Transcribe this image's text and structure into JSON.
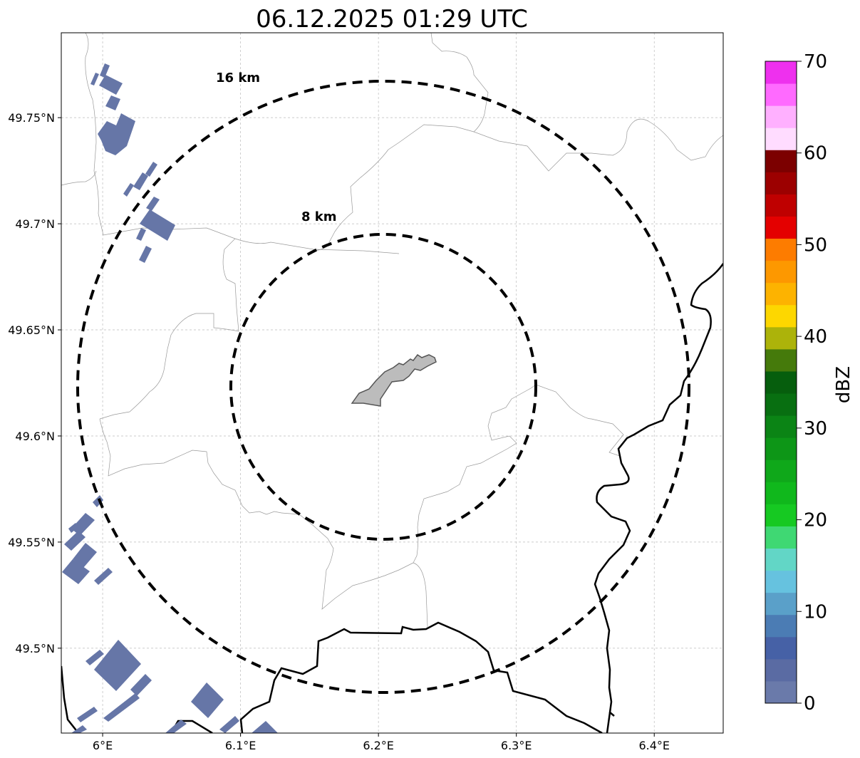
{
  "title": "06.12.2025 01:29 UTC",
  "map": {
    "lon_range": [
      5.97,
      6.45
    ],
    "lat_range": [
      49.46,
      49.79
    ],
    "x_ticks": [
      {
        "value": 6.0,
        "label": "6°E"
      },
      {
        "value": 6.1,
        "label": "6.1°E"
      },
      {
        "value": 6.2,
        "label": "6.2°E"
      },
      {
        "value": 6.3,
        "label": "6.3°E"
      },
      {
        "value": 6.4,
        "label": "6.4°E"
      }
    ],
    "y_ticks": [
      {
        "value": 49.75,
        "label": "49.75°N"
      },
      {
        "value": 49.7,
        "label": "49.7°N"
      },
      {
        "value": 49.65,
        "label": "49.65°N"
      },
      {
        "value": 49.6,
        "label": "49.6°N"
      },
      {
        "value": 49.55,
        "label": "49.55°N"
      },
      {
        "value": 49.5,
        "label": "49.5°N"
      }
    ],
    "grid": true,
    "range_rings": [
      {
        "label": "16 km"
      },
      {
        "label": "8 km"
      }
    ]
  },
  "colorbar": {
    "label": "dBZ",
    "min": 0,
    "max": 70,
    "ticks": [
      "0",
      "10",
      "20",
      "30",
      "40",
      "50",
      "60",
      "70"
    ],
    "colors": [
      "#6a7aaa",
      "#5a6ba3",
      "#4661a6",
      "#4b7cb4",
      "#5aa0c9",
      "#66c2df",
      "#62d6c6",
      "#3fd873",
      "#16c922",
      "#10b81c",
      "#0fa81a",
      "#0d9617",
      "#0b8415",
      "#086f11",
      "#065e0d",
      "#457a0b",
      "#acb30a",
      "#fdd700",
      "#fdb300",
      "#fd9800",
      "#fd7c00",
      "#e40000",
      "#bf0000",
      "#9c0000",
      "#7c0000",
      "#ffdcff",
      "#ffb0ff",
      "#ff6aff",
      "#ee30ee"
    ]
  },
  "colors": {
    "echo": "#6676a7",
    "city_fill": "#bcbcbc",
    "city_edge": "#555555",
    "border": "#000000",
    "admin_line": "#999999"
  }
}
